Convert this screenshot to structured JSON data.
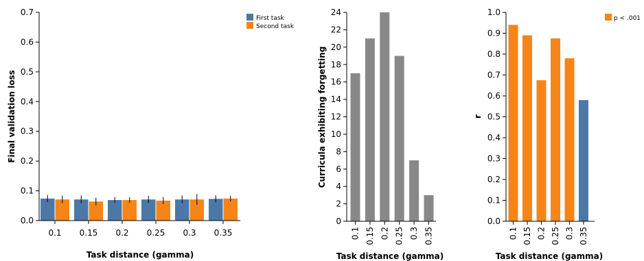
{
  "colors": {
    "first_task": "#4c78a8",
    "second_task": "#f58518",
    "gray": "#888888",
    "sig": "#f58518",
    "nonsig": "#4c78a8"
  },
  "chart_data": [
    {
      "type": "bar",
      "title": "",
      "xlabel": "Task distance (gamma)",
      "ylabel": "Final validation loss",
      "categories": [
        "0.1",
        "0.15",
        "0.2",
        "0.25",
        "0.3",
        "0.35"
      ],
      "ylim": [
        0,
        0.7
      ],
      "yticks": [
        "0.0",
        "0.1",
        "0.2",
        "0.3",
        "0.4",
        "0.5",
        "0.6",
        "0.7"
      ],
      "legend_position": "top-right",
      "series": [
        {
          "name": "First task",
          "color": "#4c78a8",
          "values": [
            0.074,
            0.071,
            0.069,
            0.071,
            0.071,
            0.073
          ],
          "errors": [
            0.012,
            0.013,
            0.01,
            0.012,
            0.013,
            0.012
          ]
        },
        {
          "name": "Second task",
          "color": "#f58518",
          "values": [
            0.071,
            0.064,
            0.069,
            0.067,
            0.071,
            0.074
          ],
          "errors": [
            0.013,
            0.013,
            0.01,
            0.012,
            0.018,
            0.01
          ]
        }
      ]
    },
    {
      "type": "bar",
      "title": "",
      "xlabel": "Task distance (gamma)",
      "ylabel": "Curricula exhibiting forgetting",
      "categories": [
        "0.1",
        "0.15",
        "0.2",
        "0.25",
        "0.3",
        "0.35"
      ],
      "values": [
        17,
        21,
        24,
        19,
        7,
        3
      ],
      "color": "#888888",
      "ylim": [
        0,
        24
      ],
      "yticks": [
        "0",
        "2",
        "4",
        "6",
        "8",
        "10",
        "12",
        "14",
        "16",
        "18",
        "20",
        "22",
        "24"
      ]
    },
    {
      "type": "bar",
      "title": "",
      "xlabel": "Task distance (gamma)",
      "ylabel": "r",
      "categories": [
        "0.1",
        "0.15",
        "0.2",
        "0.25",
        "0.3",
        "0.35"
      ],
      "values": [
        0.94,
        0.89,
        0.675,
        0.875,
        0.78,
        0.58
      ],
      "significant": [
        true,
        true,
        true,
        true,
        true,
        false
      ],
      "ylim": [
        0,
        1.0
      ],
      "yticks": [
        "0.0",
        "0.1",
        "0.2",
        "0.3",
        "0.4",
        "0.5",
        "0.6",
        "0.7",
        "0.8",
        "0.9",
        "1.0"
      ],
      "legend": [
        "p < .001"
      ],
      "legend_position": "top-right"
    }
  ]
}
